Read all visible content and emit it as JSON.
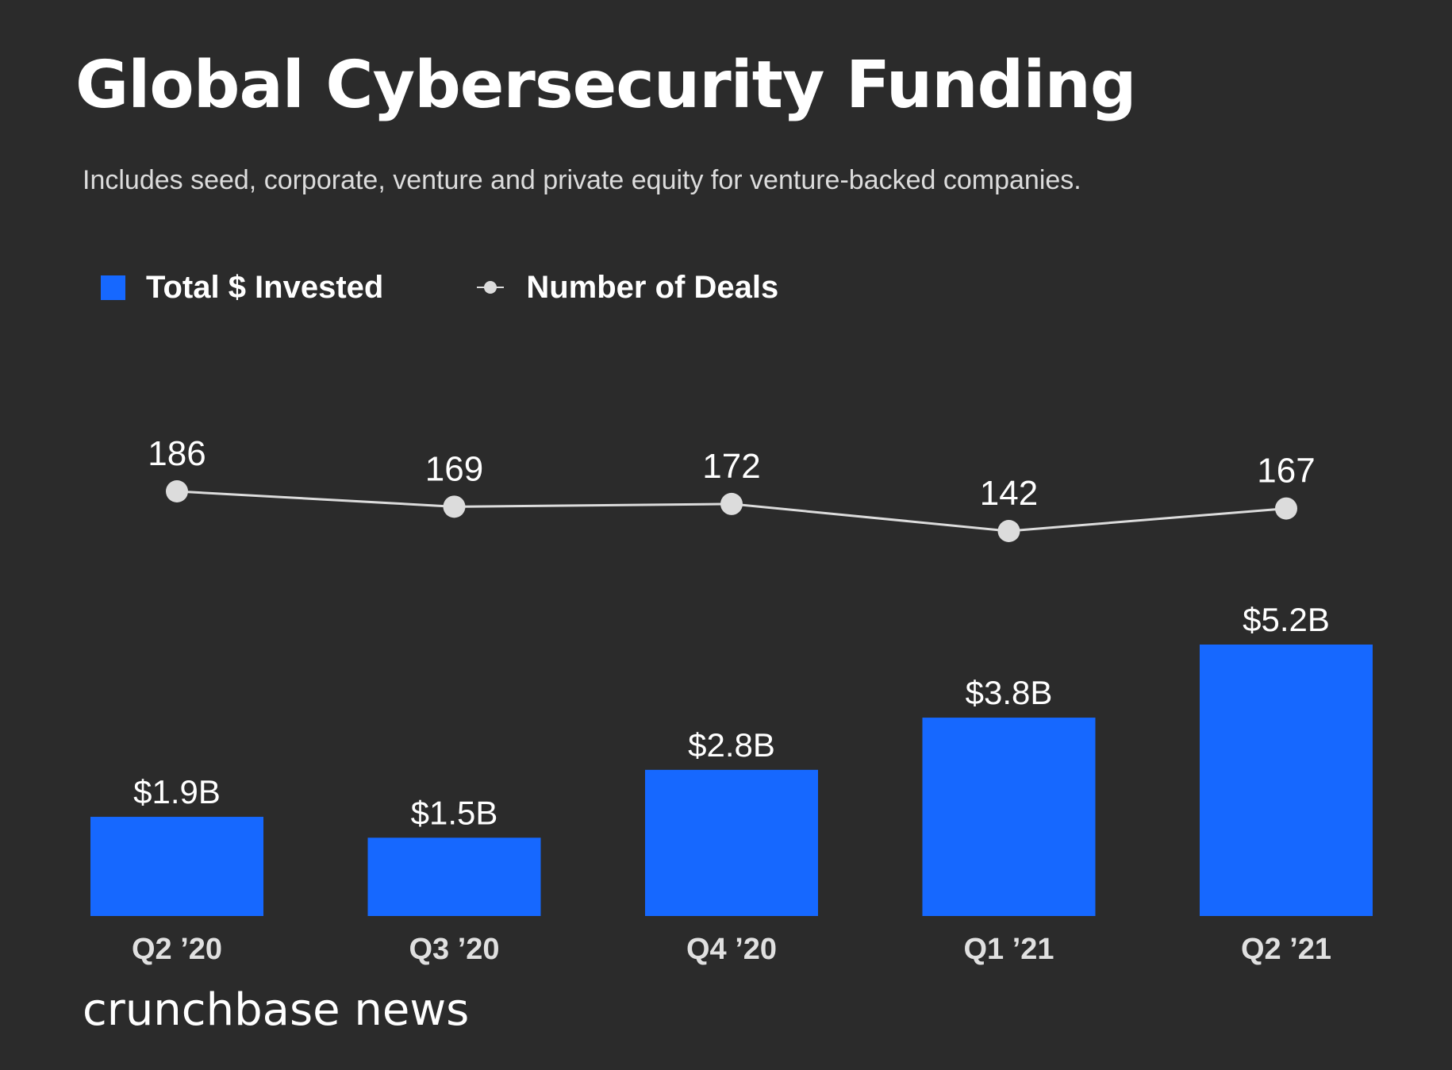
{
  "title": "Global Cybersecurity Funding",
  "subtitle": "Includes seed, corporate, venture and private equity for venture-backed companies.",
  "legend": {
    "bars_label": "Total $ Invested",
    "line_label": "Number of Deals"
  },
  "brand": "crunchbase news",
  "colors": {
    "background": "#2b2b2b",
    "bar": "#1668ff",
    "line": "#dcdcdc",
    "text": "#ffffff"
  },
  "chart_data": {
    "type": "bar",
    "title": "Global Cybersecurity Funding",
    "subtitle": "Includes seed, corporate, venture and private equity for venture-backed companies.",
    "categories": [
      "Q2 ’20",
      "Q3 ’20",
      "Q4 ’20",
      "Q1 ’21",
      "Q2 ’21"
    ],
    "series": [
      {
        "name": "Total $ Invested",
        "type": "bar",
        "values": [
          1.9,
          1.5,
          2.8,
          3.8,
          5.2
        ],
        "labels": [
          "$1.9B",
          "$1.5B",
          "$2.8B",
          "$3.8B",
          "$5.2B"
        ],
        "color": "#1668ff"
      },
      {
        "name": "Number of Deals",
        "type": "line",
        "values": [
          186,
          169,
          172,
          142,
          167
        ],
        "labels": [
          "186",
          "169",
          "172",
          "142",
          "167"
        ],
        "color": "#dcdcdc"
      }
    ],
    "legend_position": "top-left",
    "grid": false,
    "axes_visible": false
  }
}
